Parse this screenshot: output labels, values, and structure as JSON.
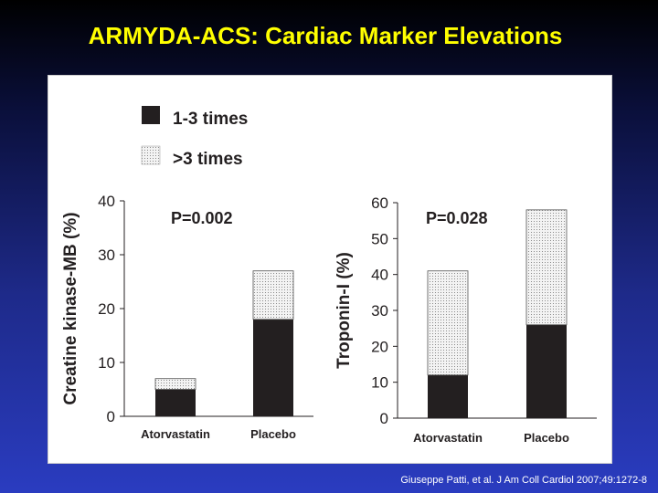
{
  "slide": {
    "title": "ARMYDA-ACS: Cardiac Marker Elevations",
    "citation": "Giuseppe Patti, et al. J Am Coll Cardiol 2007;49:1272-8"
  },
  "legend": {
    "items": [
      {
        "label": "1-3 times",
        "pattern": "solid"
      },
      {
        "label": ">3 times",
        "pattern": "dotted"
      }
    ]
  },
  "colors": {
    "title": "#ffff00",
    "solid": "#231f20",
    "dotted_fill": "#f3f3f3",
    "dot": "#8a8a8a"
  },
  "chart_data": [
    {
      "type": "bar",
      "stacked": true,
      "ylabel": "Creatine kinase-MB (%)",
      "ylim": [
        0,
        40
      ],
      "yticks": [
        0,
        10,
        20,
        30,
        40
      ],
      "annotation": "P=0.002",
      "categories": [
        "Atorvastatin",
        "Placebo"
      ],
      "series": [
        {
          "name": "1-3 times",
          "values": [
            5,
            18
          ]
        },
        {
          "name": ">3 times",
          "values": [
            2,
            9
          ]
        }
      ]
    },
    {
      "type": "bar",
      "stacked": true,
      "ylabel": "Troponin-I (%)",
      "ylim": [
        0,
        60
      ],
      "yticks": [
        0,
        10,
        20,
        30,
        40,
        50,
        60
      ],
      "annotation": "P=0.028",
      "categories": [
        "Atorvastatin",
        "Placebo"
      ],
      "series": [
        {
          "name": "1-3 times",
          "values": [
            12,
            26
          ]
        },
        {
          "name": ">3 times",
          "values": [
            29,
            32
          ]
        }
      ]
    }
  ]
}
